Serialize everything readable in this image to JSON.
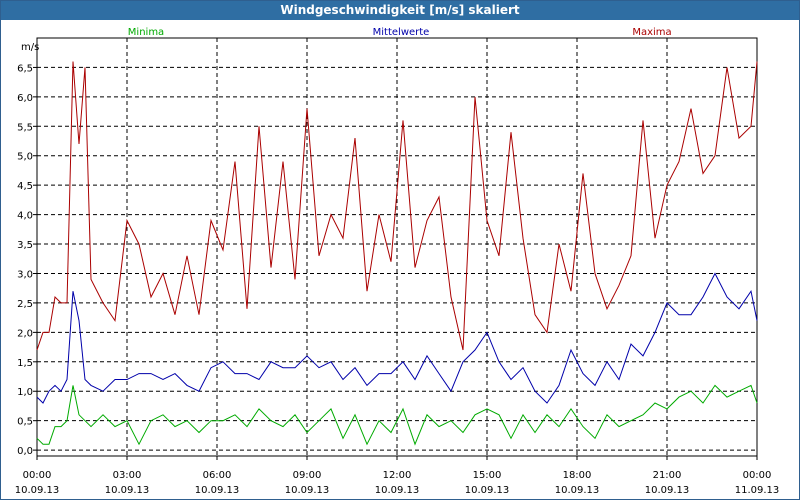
{
  "window": {
    "title": "Windgeschwindigkeit [m/s] skaliert"
  },
  "chart_data": {
    "type": "line",
    "title": "Windgeschwindigkeit [m/s] skaliert",
    "ylabel": "m/s",
    "ylim": [
      -0.1,
      7.0
    ],
    "y_ticks": [
      "0,0",
      "0,5",
      "1,0",
      "1,5",
      "2,0",
      "2,5",
      "3,0",
      "3,5",
      "4,0",
      "4,5",
      "5,0",
      "5,5",
      "6,0",
      "6,5"
    ],
    "x_range_hours": [
      0,
      24
    ],
    "x_ticks": [
      {
        "time": "00:00",
        "date": "10.09.13"
      },
      {
        "time": "03:00",
        "date": "10.09.13"
      },
      {
        "time": "06:00",
        "date": "10.09.13"
      },
      {
        "time": "09:00",
        "date": "10.09.13"
      },
      {
        "time": "12:00",
        "date": "10.09.13"
      },
      {
        "time": "15:00",
        "date": "10.09.13"
      },
      {
        "time": "18:00",
        "date": "10.09.13"
      },
      {
        "time": "21:00",
        "date": "10.09.13"
      },
      {
        "time": "00:00",
        "date": "11.09.13"
      }
    ],
    "grid": true,
    "legend_position": "top",
    "series": [
      {
        "name": "Minima",
        "color": "#00aa00",
        "x": [
          0,
          0.2,
          0.4,
          0.6,
          0.8,
          1,
          1.2,
          1.4,
          1.6,
          1.8,
          2.2,
          2.6,
          3,
          3.4,
          3.8,
          4.2,
          4.6,
          5,
          5.4,
          5.8,
          6.2,
          6.6,
          7,
          7.4,
          7.8,
          8.2,
          8.6,
          9,
          9.4,
          9.8,
          10.2,
          10.6,
          11,
          11.4,
          11.8,
          12.2,
          12.6,
          13,
          13.4,
          13.8,
          14.2,
          14.6,
          15,
          15.4,
          15.8,
          16.2,
          16.6,
          17,
          17.4,
          17.8,
          18.2,
          18.6,
          19,
          19.4,
          19.8,
          20.2,
          20.6,
          21,
          21.4,
          21.8,
          22.2,
          22.6,
          23,
          23.4,
          23.8,
          24
        ],
        "values": [
          0.2,
          0.1,
          0.1,
          0.4,
          0.4,
          0.5,
          1.1,
          0.6,
          0.5,
          0.4,
          0.6,
          0.4,
          0.5,
          0.1,
          0.5,
          0.6,
          0.4,
          0.5,
          0.3,
          0.5,
          0.5,
          0.6,
          0.4,
          0.7,
          0.5,
          0.4,
          0.6,
          0.3,
          0.5,
          0.7,
          0.2,
          0.6,
          0.1,
          0.5,
          0.3,
          0.7,
          0.1,
          0.6,
          0.4,
          0.5,
          0.3,
          0.6,
          0.7,
          0.6,
          0.2,
          0.6,
          0.3,
          0.6,
          0.4,
          0.7,
          0.4,
          0.2,
          0.6,
          0.4,
          0.5,
          0.6,
          0.8,
          0.7,
          0.9,
          1.0,
          0.8,
          1.1,
          0.9,
          1.0,
          1.1,
          0.8
        ]
      },
      {
        "name": "Mittelwerte",
        "color": "#0000aa",
        "x": [
          0,
          0.2,
          0.4,
          0.6,
          0.8,
          1,
          1.2,
          1.4,
          1.6,
          1.8,
          2.2,
          2.6,
          3,
          3.4,
          3.8,
          4.2,
          4.6,
          5,
          5.4,
          5.8,
          6.2,
          6.6,
          7,
          7.4,
          7.8,
          8.2,
          8.6,
          9,
          9.4,
          9.8,
          10.2,
          10.6,
          11,
          11.4,
          11.8,
          12.2,
          12.6,
          13,
          13.4,
          13.8,
          14.2,
          14.6,
          15,
          15.4,
          15.8,
          16.2,
          16.6,
          17,
          17.4,
          17.8,
          18.2,
          18.6,
          19,
          19.4,
          19.8,
          20.2,
          20.6,
          21,
          21.4,
          21.8,
          22.2,
          22.6,
          23,
          23.4,
          23.8,
          24
        ],
        "values": [
          0.9,
          0.8,
          1.0,
          1.1,
          1.0,
          1.2,
          2.7,
          2.2,
          1.2,
          1.1,
          1.0,
          1.2,
          1.2,
          1.3,
          1.3,
          1.2,
          1.3,
          1.1,
          1.0,
          1.4,
          1.5,
          1.3,
          1.3,
          1.2,
          1.5,
          1.4,
          1.4,
          1.6,
          1.4,
          1.5,
          1.2,
          1.4,
          1.1,
          1.3,
          1.3,
          1.5,
          1.2,
          1.6,
          1.3,
          1.0,
          1.5,
          1.7,
          2.0,
          1.5,
          1.2,
          1.4,
          1.0,
          0.8,
          1.1,
          1.7,
          1.3,
          1.1,
          1.5,
          1.2,
          1.8,
          1.6,
          2.0,
          2.5,
          2.3,
          2.3,
          2.6,
          3.0,
          2.6,
          2.4,
          2.7,
          2.2
        ]
      },
      {
        "name": "Maxima",
        "color": "#aa0000",
        "x": [
          0,
          0.2,
          0.4,
          0.6,
          0.8,
          1,
          1.2,
          1.4,
          1.6,
          1.8,
          2.2,
          2.6,
          3,
          3.4,
          3.8,
          4.2,
          4.6,
          5,
          5.4,
          5.8,
          6.2,
          6.6,
          7,
          7.4,
          7.8,
          8.2,
          8.6,
          9,
          9.4,
          9.8,
          10.2,
          10.6,
          11,
          11.4,
          11.8,
          12.2,
          12.6,
          13,
          13.4,
          13.8,
          14.2,
          14.6,
          15,
          15.4,
          15.8,
          16.2,
          16.6,
          17,
          17.4,
          17.8,
          18.2,
          18.6,
          19,
          19.4,
          19.8,
          20.2,
          20.6,
          21,
          21.4,
          21.8,
          22.2,
          22.6,
          23,
          23.4,
          23.8,
          24
        ],
        "values": [
          1.7,
          2.0,
          2.0,
          2.6,
          2.5,
          2.5,
          6.6,
          5.2,
          6.5,
          2.9,
          2.5,
          2.2,
          3.9,
          3.5,
          2.6,
          3.0,
          2.3,
          3.3,
          2.3,
          3.9,
          3.4,
          4.9,
          2.4,
          5.5,
          3.1,
          4.9,
          2.9,
          5.8,
          3.3,
          4.0,
          3.6,
          5.3,
          2.7,
          4.0,
          3.2,
          5.6,
          3.1,
          3.9,
          4.3,
          2.6,
          1.7,
          6.0,
          3.9,
          3.3,
          5.4,
          3.6,
          2.3,
          2.0,
          3.5,
          2.7,
          4.7,
          3.0,
          2.4,
          2.8,
          3.3,
          5.6,
          3.6,
          4.5,
          4.9,
          5.8,
          4.7,
          5.0,
          6.5,
          5.3,
          5.5,
          6.6
        ]
      }
    ]
  }
}
